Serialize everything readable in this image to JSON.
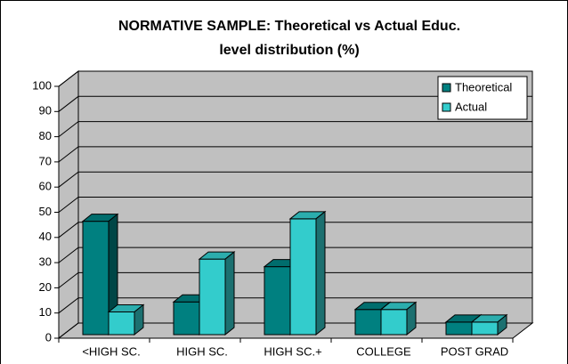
{
  "chart_data": {
    "type": "bar3d",
    "title": [
      "NORMATIVE SAMPLE: Theoretical vs Actual Educ.",
      "level distribution (%)"
    ],
    "categories": [
      "<HIGH SC.",
      "HIGH SC.",
      "HIGH SC.+",
      "COLLEGE",
      "POST GRAD"
    ],
    "series": [
      {
        "name": "Theoretical",
        "color": "#008080",
        "values": [
          45,
          13,
          27,
          10,
          5
        ]
      },
      {
        "name": "Actual",
        "color": "#33cccc",
        "values": [
          9,
          30,
          46,
          10,
          5
        ]
      }
    ],
    "ylim": [
      0,
      100
    ],
    "yticks": [
      0,
      10,
      20,
      30,
      40,
      50,
      60,
      70,
      80,
      90,
      100
    ],
    "grid": true,
    "legend": "upper right"
  }
}
